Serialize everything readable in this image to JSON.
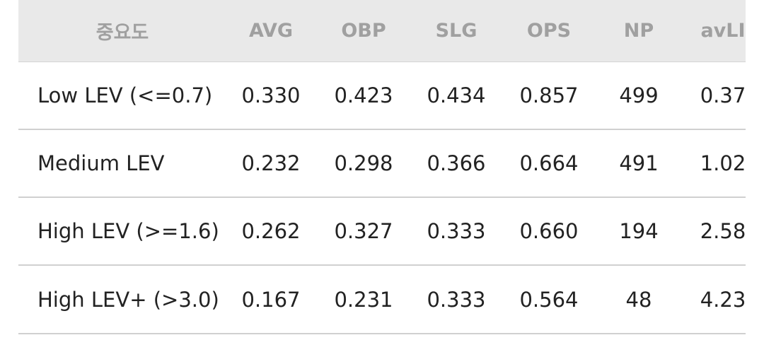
{
  "table": {
    "headers": [
      "중요도",
      "AVG",
      "OBP",
      "SLG",
      "OPS",
      "NP",
      "avLI"
    ],
    "rows": [
      [
        "Low LEV (<=0.7)",
        "0.330",
        "0.423",
        "0.434",
        "0.857",
        "499",
        "0.37"
      ],
      [
        "Medium LEV",
        "0.232",
        "0.298",
        "0.366",
        "0.664",
        "491",
        "1.02"
      ],
      [
        "High LEV (>=1.6)",
        "0.262",
        "0.327",
        "0.333",
        "0.660",
        "194",
        "2.58"
      ],
      [
        "High LEV+ (>3.0)",
        "0.167",
        "0.231",
        "0.333",
        "0.564",
        "48",
        "4.23"
      ]
    ]
  }
}
